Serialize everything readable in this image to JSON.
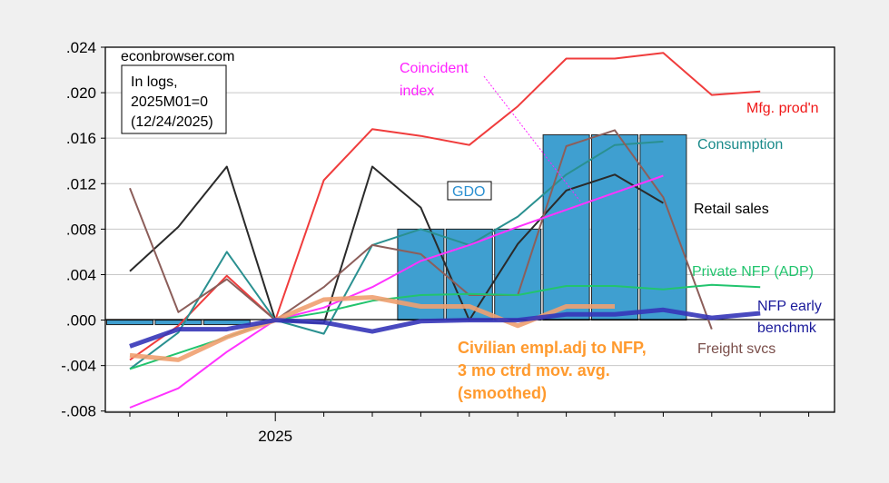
{
  "chart_data": {
    "type": "line",
    "title": "",
    "xlabel": "",
    "ylabel": "",
    "x": [
      "2024M10",
      "2024M11",
      "2024M12",
      "2025M01",
      "2025M02",
      "2025M03",
      "2025M04",
      "2025M05",
      "2025M06",
      "2025M07",
      "2025M08",
      "2025M09",
      "2025M10",
      "2025M11",
      "2025M12"
    ],
    "x_tick_labels": [
      {
        "index": 3,
        "label": "2025"
      }
    ],
    "ylim": [
      -0.0081,
      0.024
    ],
    "y_ticks": [
      {
        "v": 0.024,
        "label": ".024"
      },
      {
        "v": 0.02,
        "label": ".020"
      },
      {
        "v": 0.016,
        "label": ".016"
      },
      {
        "v": 0.012,
        "label": ".012"
      },
      {
        "v": 0.008,
        "label": ".008"
      },
      {
        "v": 0.004,
        "label": ".004"
      },
      {
        "v": 0.0,
        "label": ".000"
      },
      {
        "v": -0.004,
        "label": "-.004"
      },
      {
        "v": -0.008,
        "label": "-.008"
      }
    ],
    "grid": true,
    "bars": {
      "name": "GDO",
      "color": "#3f9fd0",
      "values": [
        -0.0004,
        -0.0004,
        -0.0004,
        null,
        null,
        null,
        0.008,
        0.008,
        0.008,
        0.0163,
        0.0163,
        0.0163,
        null,
        null,
        null
      ]
    },
    "series": [
      {
        "name": "Mfg. prod'n",
        "color": "#f03c3c",
        "width": 2,
        "values": [
          -0.0035,
          -0.0005,
          0.0039,
          0,
          0.0123,
          0.0168,
          0.0162,
          0.0154,
          0.0188,
          0.023,
          0.023,
          0.0235,
          0.0198,
          0.0201,
          null
        ]
      },
      {
        "name": "Retail sales",
        "color": "#2a2a2a",
        "width": 2,
        "values": [
          0.0043,
          0.0082,
          0.0135,
          0,
          -0.0003,
          0.0135,
          0.0099,
          0.0,
          0.0067,
          0.0114,
          0.0128,
          0.0103,
          null,
          null,
          null
        ]
      },
      {
        "name": "Consumption",
        "color": "#2a9090",
        "width": 2,
        "values": [
          -0.0043,
          -0.0011,
          0.006,
          0,
          -0.0012,
          0.0066,
          0.008,
          0.0066,
          0.0091,
          0.0128,
          0.0154,
          0.0157,
          null,
          null,
          null
        ]
      },
      {
        "name": "Freight svcs",
        "color": "#8c5e5a",
        "width": 2,
        "values": [
          0.0116,
          0.0007,
          0.0036,
          0,
          0.0029,
          0.0066,
          0.0058,
          0.0022,
          0.0022,
          0.0153,
          0.0167,
          0.0108,
          -0.0008,
          null,
          null
        ]
      },
      {
        "name": "Coincident index",
        "color": "#ff33ff",
        "width": 2,
        "values": [
          -0.0077,
          -0.006,
          -0.0028,
          0,
          0.0011,
          0.0029,
          0.0052,
          0.0066,
          0.0082,
          0.0097,
          0.0112,
          0.0127,
          null,
          null,
          null
        ]
      },
      {
        "name": "Private NFP (ADP)",
        "color": "#22c46e",
        "width": 2,
        "values": [
          -0.0043,
          -0.0029,
          -0.0015,
          0,
          0.0007,
          0.0017,
          0.0022,
          0.0023,
          0.0022,
          0.003,
          0.003,
          0.0027,
          0.0031,
          0.0029,
          null
        ]
      },
      {
        "name": "Civilian empl.adj to NFP, 3 mo ctrd mov. avg. (smoothed)",
        "color": "#f0a070",
        "width": 5,
        "values": [
          -0.0031,
          -0.0035,
          -0.0015,
          0,
          0.0018,
          0.002,
          0.0012,
          0.0012,
          -0.0005,
          0.0012,
          0.0012,
          null,
          null,
          null,
          null
        ]
      },
      {
        "name": "NFP early benchmk",
        "color": "#3535b8",
        "width": 5,
        "values": [
          -0.0023,
          -0.0008,
          -0.0008,
          0,
          -0.0002,
          -0.001,
          -0.0001,
          0.0,
          0.0,
          0.0005,
          0.0005,
          0.0009,
          0.0002,
          0.0006,
          null
        ]
      }
    ],
    "annotations": {
      "source": "econbrowser.com",
      "note_line1": "In logs,",
      "note_line2": "2025M01=0",
      "note_line3": "(12/24/2025)",
      "gdo": "GDO",
      "coincident_1": "Coincident",
      "coincident_2": "index",
      "mfg": "Mfg. prod'n",
      "consumption": "Consumption",
      "retail": "Retail sales",
      "adp": "Private NFP (ADP)",
      "nfp_1": "NFP early",
      "nfp_2": "benchmk",
      "freight": "Freight svcs",
      "civ_1": "Civilian empl.adj to NFP,",
      "civ_2": "3 mo ctrd mov. avg.",
      "civ_3": "(smoothed)"
    }
  }
}
